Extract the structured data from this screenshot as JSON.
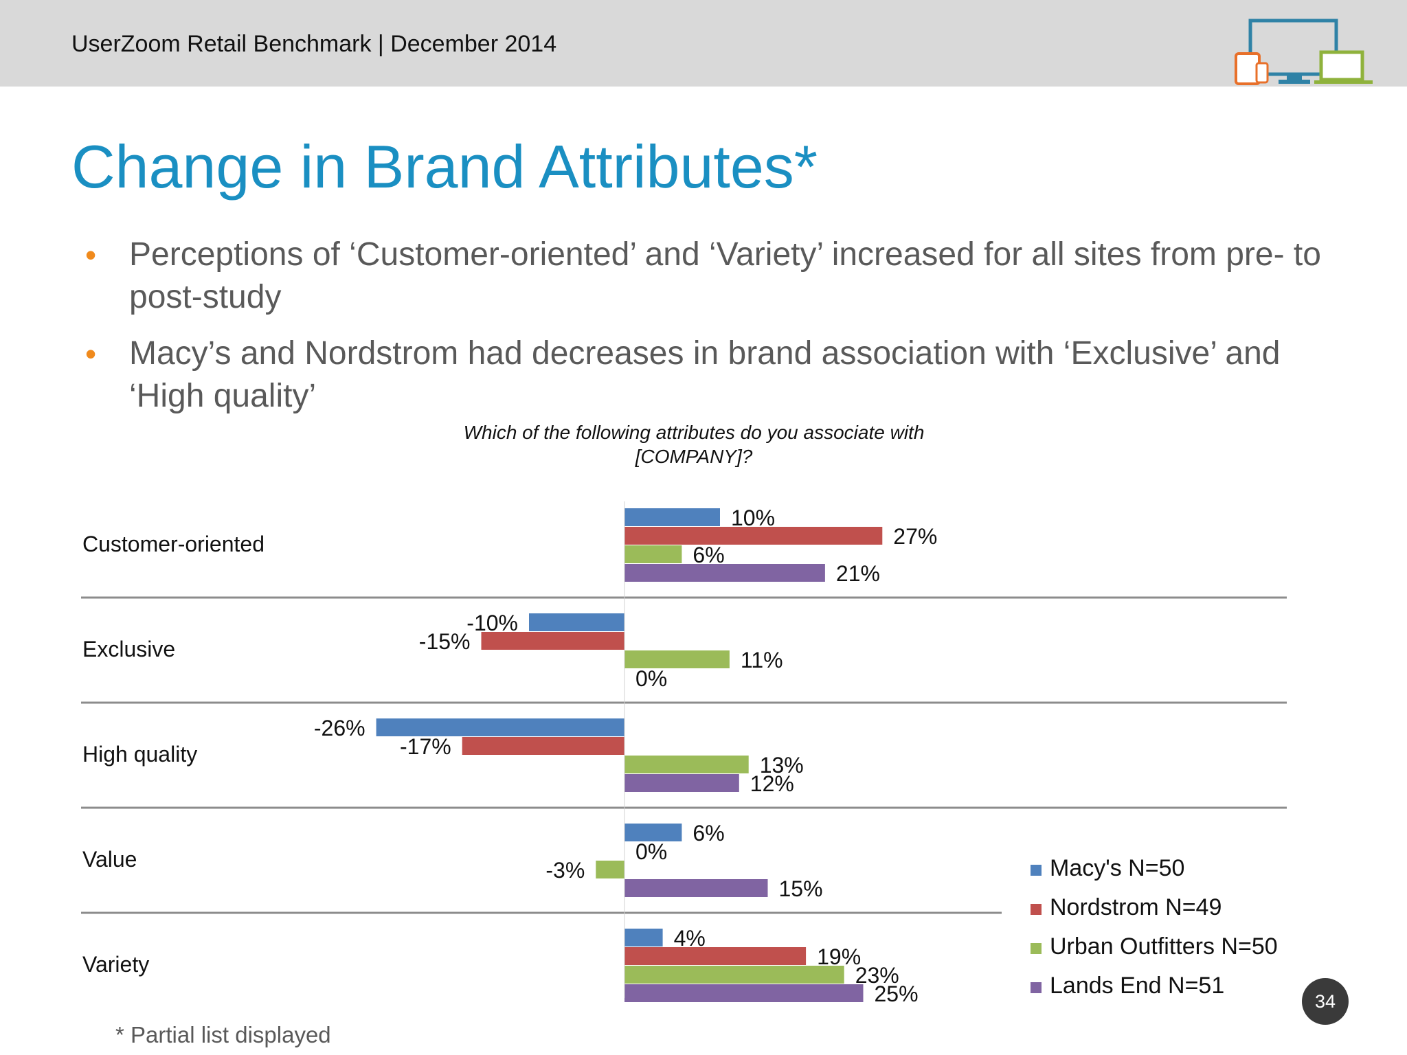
{
  "header": {
    "text": "UserZoom Retail Benchmark | December 2014"
  },
  "slide": {
    "title": "Change in Brand Attributes*",
    "bullets": [
      "Perceptions of ‘Customer-oriented’ and ‘Variety’ increased for all sites from pre- to post-study",
      "Macy’s and Nordstrom had decreases in brand association with ‘Exclusive’ and ‘High quality’"
    ],
    "footnote": "* Partial list displayed",
    "page_number": "34"
  },
  "icons": {
    "header_graphic": "devices-icon",
    "bullet": "bullet-dot-icon"
  },
  "chart_data": {
    "type": "bar",
    "orientation": "horizontal",
    "title": "Which of the following attributes do you associate with [COMPANY]?",
    "categories": [
      "Customer-oriented",
      "Exclusive",
      "High quality",
      "Value",
      "Variety"
    ],
    "series": [
      {
        "name": "Macy's N=50",
        "color": "#4f81bd",
        "values": [
          10,
          -10,
          -26,
          6,
          4
        ],
        "labels": [
          "10%",
          "-10%",
          "-26%",
          "6%",
          "4%"
        ]
      },
      {
        "name": "Nordstrom N=49",
        "color": "#c0504d",
        "values": [
          27,
          -15,
          -17,
          0,
          19
        ],
        "labels": [
          "27%",
          "-15%",
          "-17%",
          "0%",
          "19%"
        ]
      },
      {
        "name": "Urban Outfitters N=50",
        "color": "#9bbb59",
        "values": [
          6,
          11,
          13,
          -3,
          23
        ],
        "labels": [
          "6%",
          "11%",
          "13%",
          "-3%",
          "23%"
        ]
      },
      {
        "name": "Lands End N=51",
        "color": "#8064a2",
        "values": [
          21,
          0,
          12,
          15,
          25
        ],
        "labels": [
          "21%",
          "0%",
          "12%",
          "15%",
          "25%"
        ]
      }
    ],
    "legend": "right"
  }
}
